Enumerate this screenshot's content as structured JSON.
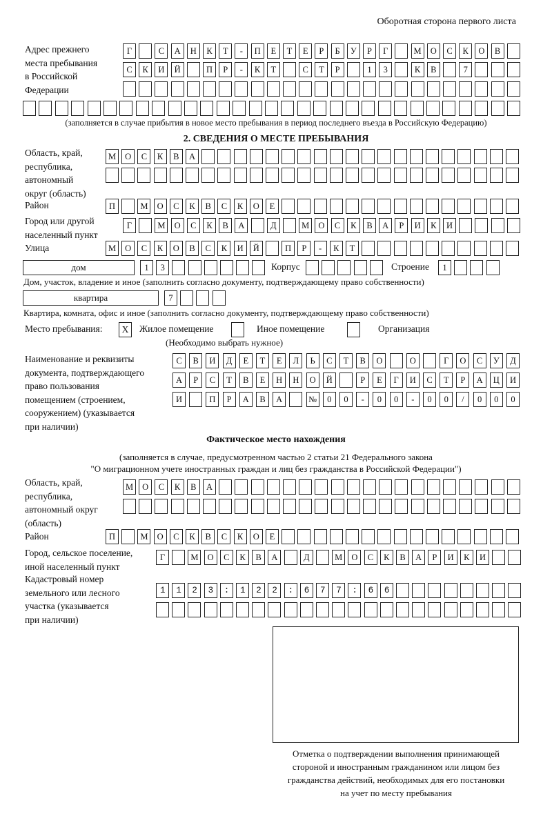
{
  "header": {
    "page_caption": "Оборотная сторона первого листа"
  },
  "previous_address": {
    "label": "Адрес прежнего\nместа пребывания\nв Российской\nФедерации",
    "rows": [
      "Г САНКТ-ПЕТЕРБУРГ МОСКОВ",
      "СКИЙ ПР-КТ СТР 13 КВ 7",
      "",
      ""
    ],
    "note": "(заполняется в случае прибытия в новое место пребывания в период последнего въезда в Российскую Федерацию)"
  },
  "section2": {
    "title": "2. СВЕДЕНИЯ О МЕСТЕ ПРЕБЫВАНИЯ",
    "region_label": "Область, край,\nреспублика,\nавтономный\nокруг (область)",
    "region_rows": [
      "МОСКВА",
      ""
    ],
    "district_label": "Район",
    "district": "П МОСКВСКОЕ",
    "city_label": "Город или другой\nнаселенный пункт",
    "city": "Г МОСКВА Д МОСКВАРИКИ",
    "street_label": "Улица",
    "street": "МОСКОВСКИЙ ПР-КТ",
    "house_type": "дом",
    "house_number": "13",
    "korpus_label": "Корпус",
    "korpus": "",
    "building_label": "Строение",
    "building": "1",
    "house_note": "Дом, участок, владение и иное (заполнить согласно документу, подтверждающему право собственности)",
    "apartment_type": "квартира",
    "apartment_number": "7",
    "apartment_note": "Квартира, комната, офис и иное (заполнить согласно документу, подтверждающему право собственности)",
    "stay_place_label": "Место пребывания:",
    "options": [
      {
        "label": "Жилое помещение",
        "mark": "X"
      },
      {
        "label": "Иное помещение",
        "mark": ""
      },
      {
        "label": "Организация",
        "mark": ""
      }
    ],
    "choose_note": "(Необходимо выбрать нужное)",
    "document_label": "Наименование и реквизиты\nдокумента, подтверждающего\nправо пользования\nпомещением (строением,\nсооружением) (указывается\nпри наличии)",
    "document_rows": [
      "СВИДЕТЕЛЬСТВО О ГОСУД",
      "АРСТВЕННОЙ РЕГИСТРАЦИ",
      "И ПРАВА №00-00-00/000"
    ]
  },
  "actual_location": {
    "title": "Фактическое место нахождения",
    "note_line1": "(заполняется в случае, предусмотренном частью 2 статьи 21 Федерального закона",
    "note_line2": "\"О миграционном учете иностранных граждан и лиц без гражданства в Российской Федерации\")",
    "region_label": "Область, край,\nреспублика,\nавтономный округ\n(область)",
    "region_rows": [
      "МОСКВА",
      ""
    ],
    "district_label": "Район",
    "district": "П МОСКВСКОЕ",
    "city_label": "Город, сельское поселение,\nиной населенный пункт",
    "city": "Г МОСКВА Д МОСКВАРИКИ",
    "cadastral_label": "Кадастровый номер\nземельного или лесного\nучастка (указывается\nпри наличии)",
    "cadastral_rows": [
      "1123:122:677:66",
      ""
    ]
  },
  "confirmation": {
    "caption": "Отметка о подтверждении выполнения принимающей\nстороной и иностранным гражданином или лицом без\nгражданства действий, необходимых для его постановки\nна учет по месту пребывания"
  }
}
